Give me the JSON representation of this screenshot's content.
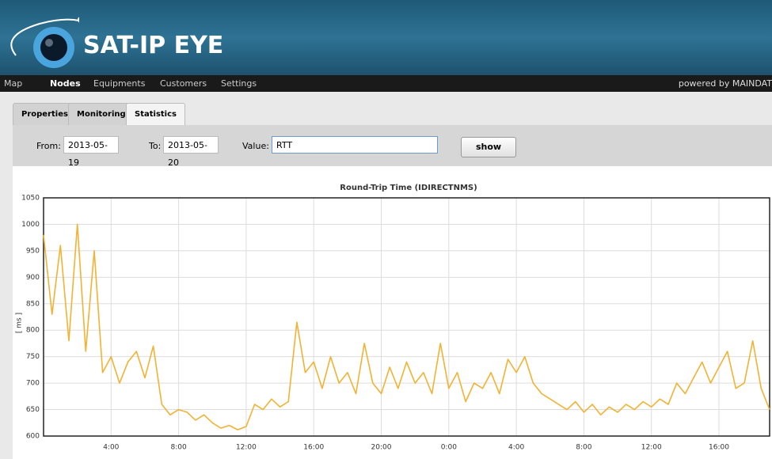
{
  "header": {
    "title": "SAT-IP EYE"
  },
  "nav": {
    "items": [
      "Map",
      "Nodes",
      "Equipments",
      "Customers",
      "Settings"
    ],
    "powered": "powered by MAINDAT"
  },
  "tabs": [
    "Properties",
    "Monitoring",
    "Statistics"
  ],
  "form": {
    "from_label": "From:",
    "from_value": "2013-05-19",
    "to_label": "To:",
    "to_value": "2013-05-20",
    "value_label": "Value:",
    "value_selected": "RTT",
    "button": "show"
  },
  "chart_data": {
    "type": "line",
    "title": "Round-Trip Time (IDIRECTNMS)",
    "y_label": "[ ms ]",
    "color": "#f2b233",
    "grid": true,
    "xlim": [
      0,
      43
    ],
    "ylim": [
      600,
      1050
    ],
    "yticks": [
      600,
      650,
      700,
      750,
      800,
      850,
      900,
      950,
      1000,
      1050
    ],
    "xticks": [
      {
        "value": 4,
        "label": "4:00"
      },
      {
        "value": 8,
        "label": "8:00"
      },
      {
        "value": 12,
        "label": "12:00"
      },
      {
        "value": 16,
        "label": "16:00"
      },
      {
        "value": 20,
        "label": "20:00"
      },
      {
        "value": 24,
        "label": "0:00"
      },
      {
        "value": 28,
        "label": "4:00"
      },
      {
        "value": 32,
        "label": "8:00"
      },
      {
        "value": 36,
        "label": "12:00"
      },
      {
        "value": 40,
        "label": "16:00"
      }
    ],
    "x": [
      0,
      0.5,
      1,
      1.5,
      2,
      2.5,
      3,
      3.5,
      4,
      4.5,
      5,
      5.5,
      6,
      6.5,
      7,
      7.5,
      8,
      8.5,
      9,
      9.5,
      10,
      10.5,
      11,
      11.5,
      12,
      12.5,
      13,
      13.5,
      14,
      14.5,
      15,
      15.5,
      16,
      16.5,
      17,
      17.5,
      18,
      18.5,
      19,
      19.5,
      20,
      20.5,
      21,
      21.5,
      22,
      22.5,
      23,
      23.5,
      24,
      24.5,
      25,
      25.5,
      26,
      26.5,
      27,
      27.5,
      28,
      28.5,
      29,
      29.5,
      30,
      30.5,
      31,
      31.5,
      32,
      32.5,
      33,
      33.5,
      34,
      34.5,
      35,
      35.5,
      36,
      36.5,
      37,
      37.5,
      38,
      38.5,
      39,
      39.5,
      40,
      40.5,
      41,
      41.5,
      42,
      42.5,
      43
    ],
    "values": [
      980,
      830,
      960,
      780,
      1000,
      760,
      950,
      720,
      750,
      700,
      740,
      760,
      710,
      770,
      660,
      640,
      650,
      645,
      630,
      640,
      625,
      615,
      620,
      612,
      618,
      660,
      650,
      670,
      655,
      665,
      815,
      720,
      740,
      690,
      750,
      700,
      720,
      680,
      775,
      700,
      680,
      730,
      690,
      740,
      700,
      720,
      680,
      775,
      690,
      720,
      665,
      700,
      690,
      720,
      680,
      745,
      720,
      750,
      700,
      680,
      670,
      660,
      650,
      665,
      645,
      660,
      640,
      655,
      645,
      660,
      650,
      665,
      655,
      670,
      660,
      700,
      680,
      710,
      740,
      700,
      730,
      760,
      690,
      700,
      780,
      690,
      650
    ]
  }
}
